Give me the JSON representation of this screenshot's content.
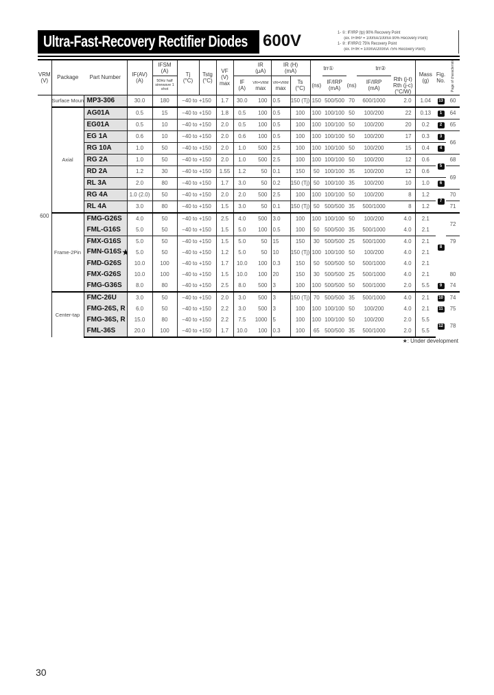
{
  "header": {
    "title": "Ultra-Fast-Recovery Rectifier Diodes",
    "voltage": "600V",
    "notes": [
      "1- ①: IF/IRP (tp) 90% Recovery Point",
      "(ex. IF/IRP = 100mA/100mA 90% Recovery Point)",
      "1- ②: IF/IRP/2 75% Recovery Point",
      "(ex. IF/IR = 100mA/200mA 75% Recovery Point)"
    ]
  },
  "columns": {
    "vrm": "VRM",
    "vrm_unit": "(V)",
    "package": "Package",
    "part": "Part Number",
    "ifav": "IF(AV)",
    "ifav_unit": "(A)",
    "ifsm": "IFSM",
    "ifsm_unit": "(A)",
    "ifsm_cond": "50Hz half sinewave 1 shot",
    "tj": "Tj",
    "tj_unit": "(°C)",
    "tstg": "Tstg",
    "tstg_unit": "(°C)",
    "vf": "VF",
    "vf_unit": "(V)",
    "vf_max": "max",
    "if": "IF",
    "if_unit": "(A)",
    "ir": "IR",
    "ir_unit": "(μA)",
    "ir_cond": "VR=VRM",
    "ir_max": "max",
    "irh": "IR (H)",
    "irh_unit": "(mA)",
    "irh_cond": "VR=VRM",
    "irh_max": "max",
    "ts": "Ts",
    "ts_unit": "(°C)",
    "trr1": "trr①",
    "trr1_unit": "(ns)",
    "trr1_cond": "IF/IRP",
    "trr1_cond_unit": "(mA)",
    "trr2": "trr②",
    "trr2_unit": "(ns)",
    "trr2_cond": "IF/IRP",
    "trr2_cond_unit": "(mA)",
    "rth1": "Rth (j-ℓ)",
    "rth2": "Rth (j-c)",
    "rth_unit": "(°C/W)",
    "mass": "Mass",
    "mass_unit": "(g)",
    "fig": "Fig.",
    "fig_unit": "No.",
    "page": "Page of characteristic curves"
  },
  "vrm_value": "600",
  "groups": [
    {
      "package": "Surface Mount",
      "rows": [
        {
          "part": "MP3-306",
          "ifav": "30.0",
          "ifsm": "180",
          "temp": "−40 to +150",
          "vf": "1.7",
          "if": "30.0",
          "ir": "100",
          "irh": "0.5",
          "ts": "150 (Tj)",
          "trr1": "150",
          "trr1c": "500/500",
          "trr2": "70",
          "trr2c": "600/1000",
          "rth": "2.0",
          "mass": "1.04",
          "fig": "13",
          "page": "60"
        }
      ]
    },
    {
      "package": "Axial",
      "rows": [
        {
          "part": "AG01A",
          "ifav": "0.5",
          "ifsm": "15",
          "temp": "−40 to +150",
          "vf": "1.8",
          "if": "0.5",
          "ir": "100",
          "irh": "0.5",
          "ts": "100",
          "trr1": "100",
          "trr1c": "100/100",
          "trr2": "50",
          "trr2c": "100/200",
          "rth": "22",
          "mass": "0.13",
          "fig": "1",
          "page": "64"
        },
        {
          "part": "EG01A",
          "ifav": "0.5",
          "ifsm": "10",
          "temp": "−40 to +150",
          "vf": "2.0",
          "if": "0.5",
          "ir": "100",
          "irh": "0.5",
          "ts": "100",
          "trr1": "100",
          "trr1c": "100/100",
          "trr2": "50",
          "trr2c": "100/200",
          "rth": "20",
          "mass": "0.2",
          "fig": "2",
          "page": "65"
        },
        {
          "part": "EG 1A",
          "ifav": "0.6",
          "ifsm": "10",
          "temp": "−40 to +150",
          "vf": "2.0",
          "if": "0.6",
          "ir": "100",
          "irh": "0.5",
          "ts": "100",
          "trr1": "100",
          "trr1c": "100/100",
          "trr2": "50",
          "trr2c": "100/200",
          "rth": "17",
          "mass": "0.3",
          "fig": "3",
          "page": "66"
        },
        {
          "part": "RG 10A",
          "ifav": "1.0",
          "ifsm": "50",
          "temp": "−40 to +150",
          "vf": "2.0",
          "if": "1.0",
          "ir": "500",
          "irh": "2.5",
          "ts": "100",
          "trr1": "100",
          "trr1c": "100/100",
          "trr2": "50",
          "trr2c": "100/200",
          "rth": "15",
          "mass": "0.4",
          "fig": "4",
          "page": null
        },
        {
          "part": "RG 2A",
          "ifav": "1.0",
          "ifsm": "50",
          "temp": "−40 to +150",
          "vf": "2.0",
          "if": "1.0",
          "ir": "500",
          "irh": "2.5",
          "ts": "100",
          "trr1": "100",
          "trr1c": "100/100",
          "trr2": "50",
          "trr2c": "100/200",
          "rth": "12",
          "mass": "0.6",
          "fig": "5",
          "page": "68"
        },
        {
          "part": "RD 2A",
          "ifav": "1.2",
          "ifsm": "30",
          "temp": "−40 to +150",
          "vf": "1.55",
          "if": "1.2",
          "ir": "50",
          "irh": "0.1",
          "ts": "150",
          "trr1": "50",
          "trr1c": "100/100",
          "trr2": "35",
          "trr2c": "100/200",
          "rth": "12",
          "mass": "0.6",
          "fig": null,
          "page": "69"
        },
        {
          "part": "RL 3A",
          "ifav": "2.0",
          "ifsm": "80",
          "temp": "−40 to +150",
          "vf": "1.7",
          "if": "3.0",
          "ir": "50",
          "irh": "0.2",
          "ts": "150 (Tj)",
          "trr1": "50",
          "trr1c": "100/100",
          "trr2": "35",
          "trr2c": "100/200",
          "rth": "10",
          "mass": "1.0",
          "fig": "6",
          "page": null
        },
        {
          "part": "RG 4A",
          "ifav": "1.0 (2.0)",
          "ifsm": "50",
          "temp": "−40 to +150",
          "vf": "2.0",
          "if": "2.0",
          "ir": "500",
          "irh": "2.5",
          "ts": "100",
          "trr1": "100",
          "trr1c": "100/100",
          "trr2": "50",
          "trr2c": "100/200",
          "rth": "8",
          "mass": "1.2",
          "fig": "7",
          "page": "70"
        },
        {
          "part": "RL 4A",
          "ifav": "3.0",
          "ifsm": "80",
          "temp": "−40 to +150",
          "vf": "1.5",
          "if": "3.0",
          "ir": "50",
          "irh": "0.1",
          "ts": "150 (Tj)",
          "trr1": "50",
          "trr1c": "500/500",
          "trr2": "35",
          "trr2c": "500/1000",
          "rth": "8",
          "mass": "1.2",
          "fig": null,
          "page": "71"
        }
      ]
    },
    {
      "package": "Frame-2Pin",
      "rows": [
        {
          "part": "FMG-G26S",
          "ifav": "4.0",
          "ifsm": "50",
          "temp": "−40 to +150",
          "vf": "2.5",
          "if": "4.0",
          "ir": "500",
          "irh": "3.0",
          "ts": "100",
          "trr1": "100",
          "trr1c": "100/100",
          "trr2": "50",
          "trr2c": "100/200",
          "rth": "4.0",
          "mass": "2.1",
          "fig": "8",
          "page": "72"
        },
        {
          "part": "FML-G16S",
          "ifav": "5.0",
          "ifsm": "50",
          "temp": "−40 to +150",
          "vf": "1.5",
          "if": "5.0",
          "ir": "100",
          "irh": "0.5",
          "ts": "100",
          "trr1": "50",
          "trr1c": "500/500",
          "trr2": "35",
          "trr2c": "500/1000",
          "rth": "4.0",
          "mass": "2.1",
          "fig": null,
          "page": null
        },
        {
          "part": "FMX-G16S",
          "ifav": "5.0",
          "ifsm": "50",
          "temp": "−40 to +150",
          "vf": "1.5",
          "if": "5.0",
          "ir": "50",
          "irh": "15",
          "ts": "150",
          "trr1": "30",
          "trr1c": "500/500",
          "trr2": "25",
          "trr2c": "500/1000",
          "rth": "4.0",
          "mass": "2.1",
          "fig": null,
          "page": "79"
        },
        {
          "part": "FMN-G16S",
          "star": "★",
          "ifav": "5.0",
          "ifsm": "50",
          "temp": "−40 to +150",
          "vf": "1.2",
          "if": "5.0",
          "ir": "50",
          "irh": "10",
          "ts": "150 (Tj)",
          "trr1": "100",
          "trr1c": "100/100",
          "trr2": "50",
          "trr2c": "100/200",
          "rth": "4.0",
          "mass": "2.1",
          "fig": null,
          "page": ""
        },
        {
          "part": "FMD-G26S",
          "ifav": "10.0",
          "ifsm": "100",
          "temp": "−40 to +150",
          "vf": "1.7",
          "if": "10.0",
          "ir": "100",
          "irh": "0.3",
          "ts": "150",
          "trr1": "50",
          "trr1c": "500/500",
          "trr2": "50",
          "trr2c": "500/1000",
          "rth": "4.0",
          "mass": "2.1",
          "fig": null,
          "page": ""
        },
        {
          "part": "FMX-G26S",
          "ifav": "10.0",
          "ifsm": "100",
          "temp": "−40 to +150",
          "vf": "1.5",
          "if": "10.0",
          "ir": "100",
          "irh": "20",
          "ts": "150",
          "trr1": "30",
          "trr1c": "500/500",
          "trr2": "25",
          "trr2c": "500/1000",
          "rth": "4.0",
          "mass": "2.1",
          "fig": null,
          "page": "80"
        },
        {
          "part": "FMG-G36S",
          "ifav": "8.0",
          "ifsm": "80",
          "temp": "−40 to +150",
          "vf": "2.5",
          "if": "8.0",
          "ir": "500",
          "irh": "3",
          "ts": "100",
          "trr1": "100",
          "trr1c": "500/500",
          "trr2": "50",
          "trr2c": "500/1000",
          "rth": "2.0",
          "mass": "5.5",
          "fig": "9",
          "page": "74"
        }
      ]
    },
    {
      "package": "Center-tap",
      "rows": [
        {
          "part": "FMC-26U",
          "ifav": "3.0",
          "ifsm": "50",
          "temp": "−40 to +150",
          "vf": "2.0",
          "if": "3.0",
          "ir": "500",
          "irh": "3",
          "ts": "150 (Tj)",
          "trr1": "70",
          "trr1c": "500/500",
          "trr2": "35",
          "trr2c": "500/1000",
          "rth": "4.0",
          "mass": "2.1",
          "fig": "10",
          "page": "74"
        },
        {
          "part": "FMG-26S, R",
          "ifav": "6.0",
          "ifsm": "50",
          "temp": "−40 to +150",
          "vf": "2.2",
          "if": "3.0",
          "ir": "500",
          "irh": "3",
          "ts": "100",
          "trr1": "100",
          "trr1c": "100/100",
          "trr2": "50",
          "trr2c": "100/200",
          "rth": "4.0",
          "mass": "2.1",
          "fig": "11",
          "page": "75"
        },
        {
          "part": "FMG-36S, R",
          "ifav": "15.0",
          "ifsm": "80",
          "temp": "−40 to +150",
          "vf": "2.2",
          "if": "7.5",
          "ir": "1000",
          "irh": "5",
          "ts": "100",
          "trr1": "100",
          "trr1c": "100/100",
          "trr2": "50",
          "trr2c": "100/200",
          "rth": "2.0",
          "mass": "5.5",
          "fig": "12",
          "page": "78"
        },
        {
          "part": "FML-36S",
          "ifav": "20.0",
          "ifsm": "100",
          "temp": "−40 to +150",
          "vf": "1.7",
          "if": "10.0",
          "ir": "100",
          "irh": "0.3",
          "ts": "100",
          "trr1": "65",
          "trr1c": "500/500",
          "trr2": "35",
          "trr2c": "500/1000",
          "rth": "2.0",
          "mass": "5.5",
          "fig": null,
          "page": null
        }
      ]
    }
  ],
  "footnote": "★: Under development",
  "page_number": "30"
}
